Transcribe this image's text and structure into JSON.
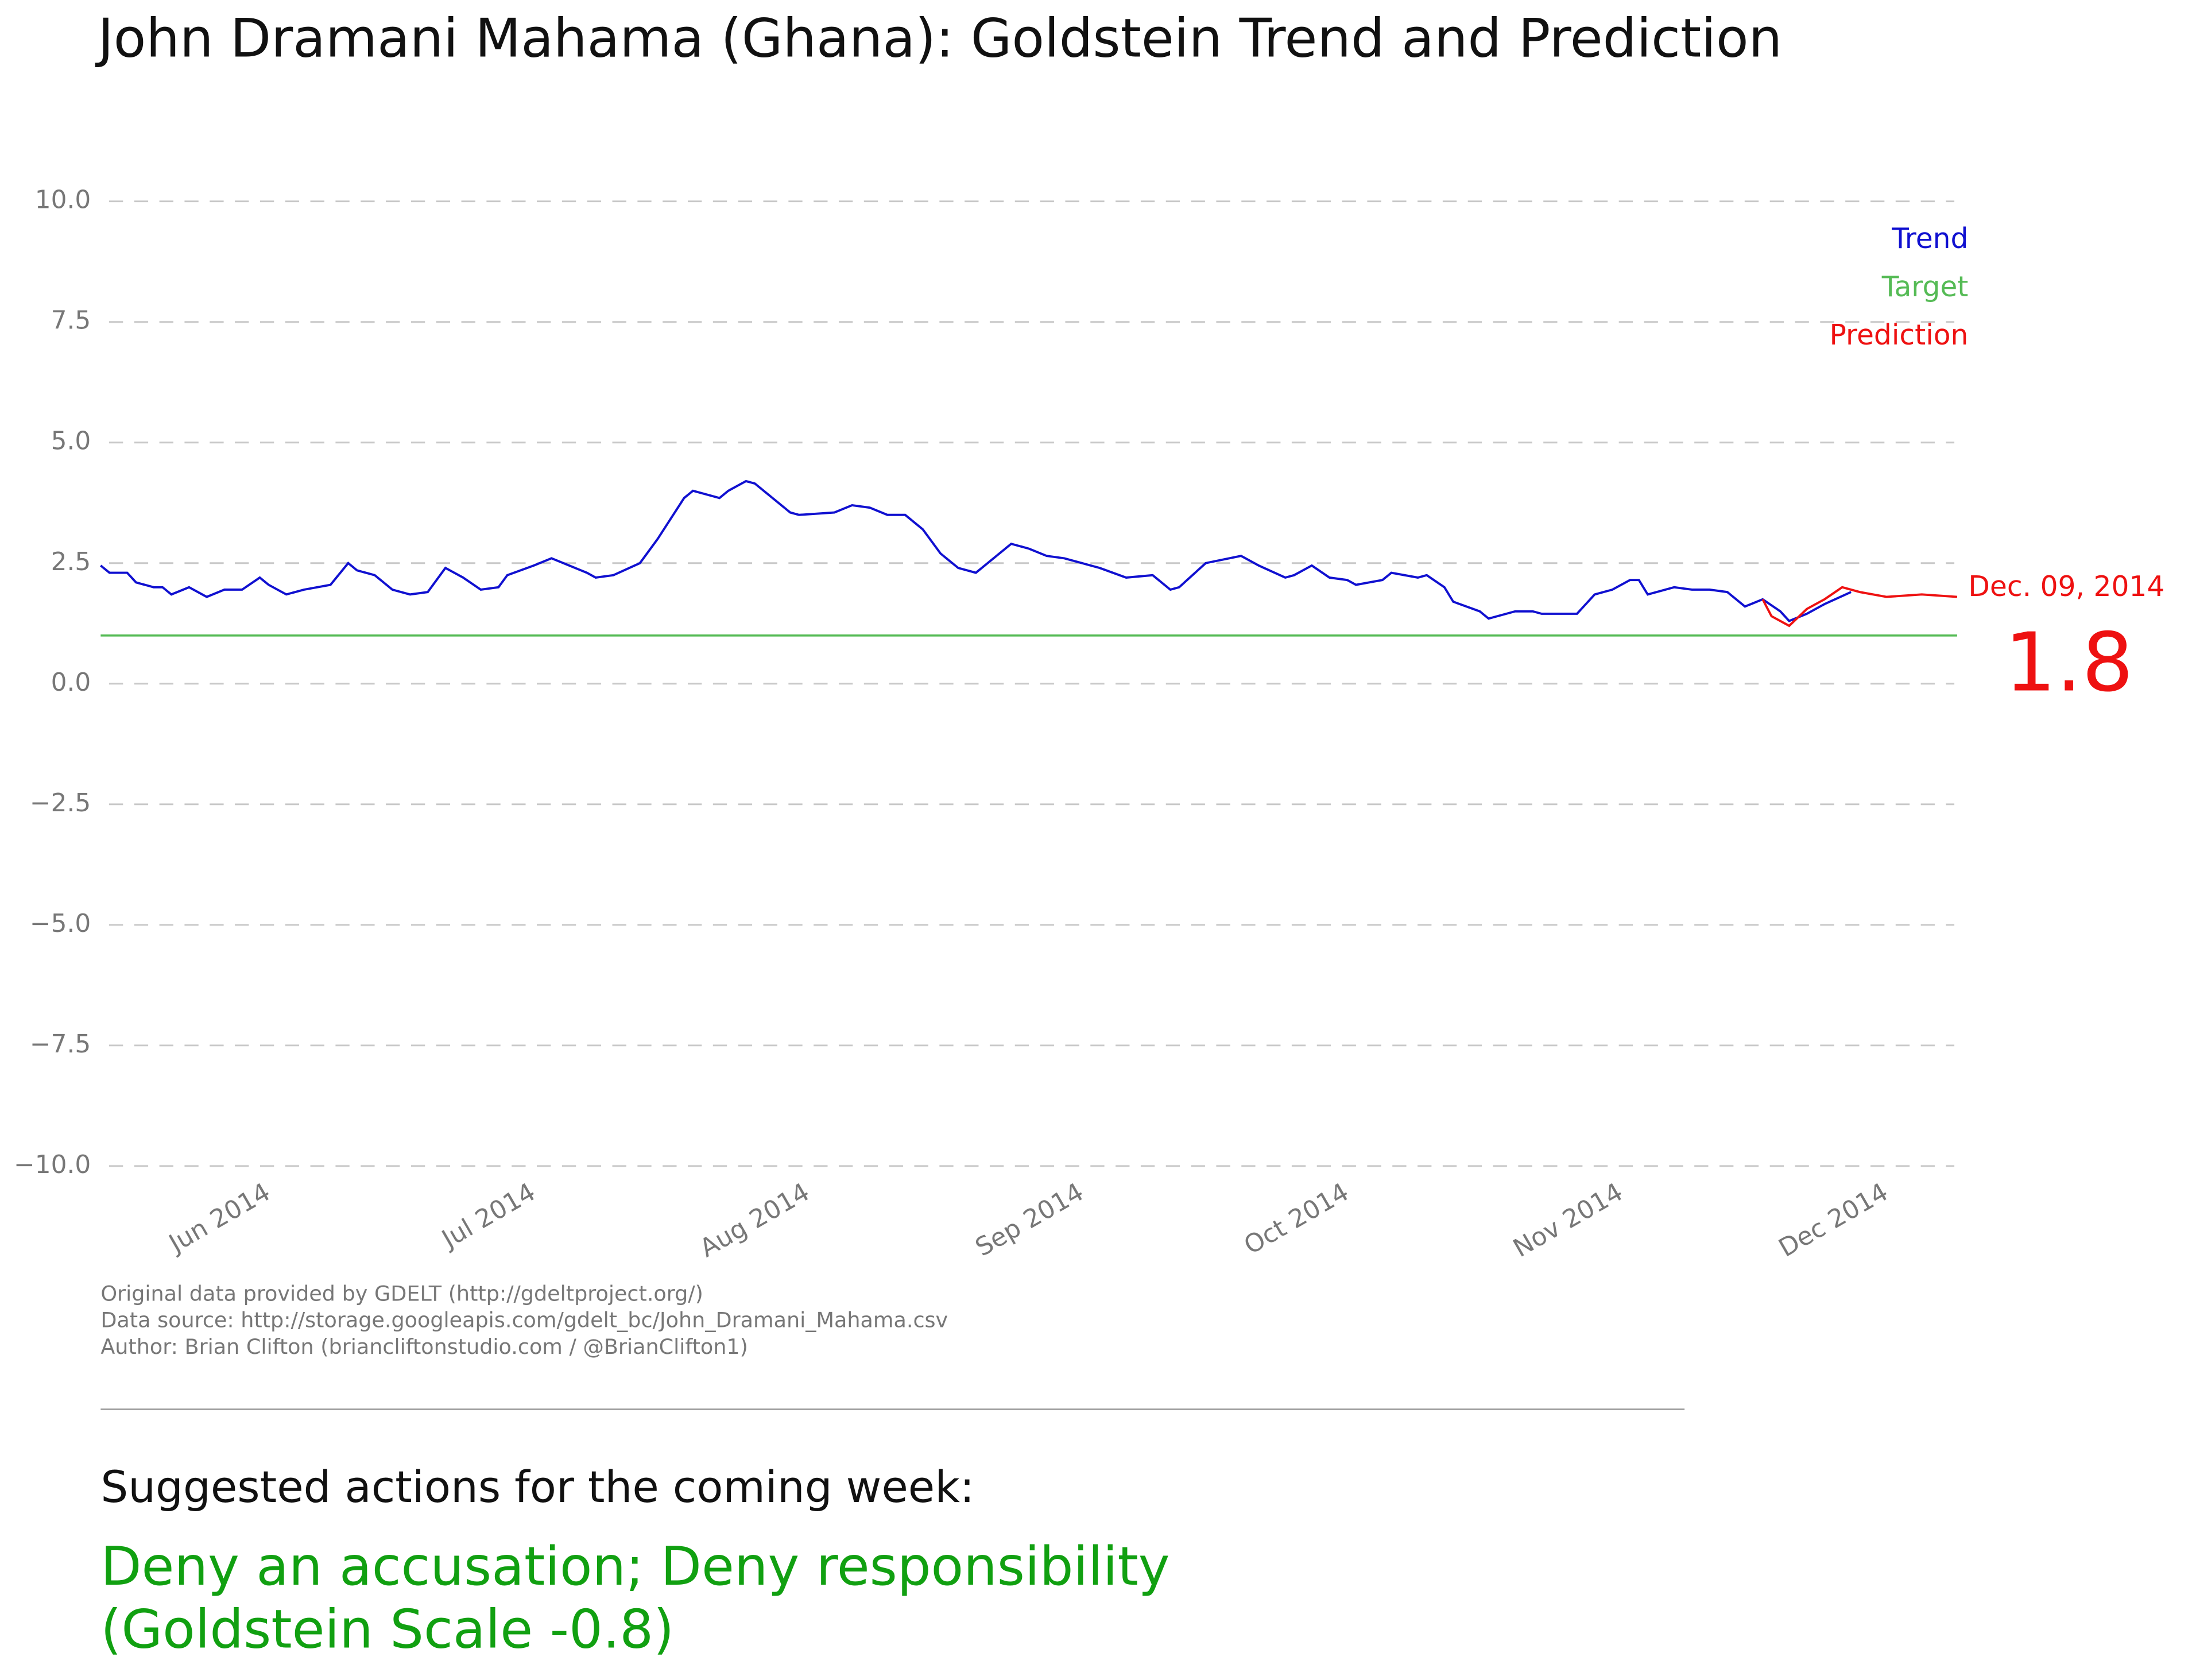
{
  "chart_data": {
    "type": "line",
    "title": "John Dramani Mahama (Ghana): Goldstein Trend and Prediction",
    "xlim": [
      "2014-05-13",
      "2014-12-09"
    ],
    "xticks": [
      {
        "value": "2014-06-01",
        "label": "Jun 2014"
      },
      {
        "value": "2014-07-01",
        "label": "Jul 2014"
      },
      {
        "value": "2014-08-01",
        "label": "Aug 2014"
      },
      {
        "value": "2014-09-01",
        "label": "Sep 2014"
      },
      {
        "value": "2014-10-01",
        "label": "Oct 2014"
      },
      {
        "value": "2014-11-01",
        "label": "Nov 2014"
      },
      {
        "value": "2014-12-01",
        "label": "Dec 2014"
      }
    ],
    "ylim": [
      -10,
      10
    ],
    "yticks": [
      {
        "value": 10,
        "label": "10.0"
      },
      {
        "value": 7.5,
        "label": "7.5"
      },
      {
        "value": 5,
        "label": "5.0"
      },
      {
        "value": 2.5,
        "label": "2.5"
      },
      {
        "value": 0,
        "label": "0.0"
      },
      {
        "value": -2.5,
        "label": "−2.5"
      },
      {
        "value": -5,
        "label": "−5.0"
      },
      {
        "value": -7.5,
        "label": "−7.5"
      },
      {
        "value": -10,
        "label": "−10.0"
      }
    ],
    "grid": true,
    "legend": "upper right",
    "series": [
      {
        "name": "Trend",
        "color": "#1010d0",
        "x": [
          "2014-05-13",
          "2014-05-14",
          "2014-05-16",
          "2014-05-17",
          "2014-05-19",
          "2014-05-20",
          "2014-05-21",
          "2014-05-23",
          "2014-05-25",
          "2014-05-27",
          "2014-05-29",
          "2014-05-31",
          "2014-06-01",
          "2014-06-03",
          "2014-06-05",
          "2014-06-08",
          "2014-06-10",
          "2014-06-11",
          "2014-06-13",
          "2014-06-15",
          "2014-06-17",
          "2014-06-19",
          "2014-06-21",
          "2014-06-23",
          "2014-06-25",
          "2014-06-27",
          "2014-06-28",
          "2014-07-01",
          "2014-07-03",
          "2014-07-05",
          "2014-07-07",
          "2014-07-08",
          "2014-07-10",
          "2014-07-13",
          "2014-07-15",
          "2014-07-18",
          "2014-07-19",
          "2014-07-22",
          "2014-07-23",
          "2014-07-25",
          "2014-07-26",
          "2014-07-30",
          "2014-07-31",
          "2014-08-04",
          "2014-08-06",
          "2014-08-08",
          "2014-08-10",
          "2014-08-12",
          "2014-08-14",
          "2014-08-16",
          "2014-08-18",
          "2014-08-20",
          "2014-08-21",
          "2014-08-23",
          "2014-08-24",
          "2014-08-26",
          "2014-08-28",
          "2014-08-30",
          "2014-09-01",
          "2014-09-03",
          "2014-09-06",
          "2014-09-09",
          "2014-09-11",
          "2014-09-12",
          "2014-09-15",
          "2014-09-19",
          "2014-09-21",
          "2014-09-24",
          "2014-09-25",
          "2014-09-27",
          "2014-09-29",
          "2014-10-01",
          "2014-10-02",
          "2014-10-05",
          "2014-10-06",
          "2014-10-09",
          "2014-10-10",
          "2014-10-12",
          "2014-10-13",
          "2014-10-16",
          "2014-10-17",
          "2014-10-20",
          "2014-10-22",
          "2014-10-23",
          "2014-10-27",
          "2014-10-29",
          "2014-10-31",
          "2014-11-02",
          "2014-11-03",
          "2014-11-04",
          "2014-11-07",
          "2014-11-09",
          "2014-11-11",
          "2014-11-13",
          "2014-11-15",
          "2014-11-17",
          "2014-11-19",
          "2014-11-20",
          "2014-11-22",
          "2014-11-24",
          "2014-11-27"
        ],
        "values": [
          2.45,
          2.3,
          2.3,
          2.1,
          2.0,
          2.0,
          1.85,
          2.0,
          1.8,
          1.95,
          1.95,
          2.2,
          2.05,
          1.85,
          1.95,
          2.05,
          2.5,
          2.35,
          2.25,
          1.95,
          1.85,
          1.9,
          2.4,
          2.2,
          1.95,
          2.0,
          2.25,
          2.45,
          2.6,
          2.45,
          2.3,
          2.2,
          2.25,
          2.5,
          3.0,
          3.85,
          4.0,
          3.85,
          4.0,
          4.2,
          4.15,
          3.55,
          3.5,
          3.55,
          3.7,
          3.65,
          3.5,
          3.5,
          3.2,
          2.7,
          2.4,
          2.3,
          2.45,
          2.75,
          2.9,
          2.8,
          2.65,
          2.6,
          2.5,
          2.4,
          2.2,
          2.25,
          1.95,
          2.0,
          2.5,
          2.65,
          2.45,
          2.2,
          2.25,
          2.45,
          2.2,
          2.15,
          2.05,
          2.15,
          2.3,
          2.2,
          2.25,
          2.0,
          1.7,
          1.5,
          1.35,
          1.5,
          1.5,
          1.45,
          1.45,
          1.85,
          1.95,
          2.15,
          2.15,
          1.85,
          2.0,
          1.95,
          1.95,
          1.9,
          1.6,
          1.75,
          1.5,
          1.3,
          1.45,
          1.65,
          1.9
        ]
      },
      {
        "name": "Target",
        "color": "#55bb55",
        "x": [
          "2014-05-13",
          "2014-12-09"
        ],
        "values": [
          1,
          1
        ]
      },
      {
        "name": "Prediction",
        "color": "#ee1111",
        "x": [
          "2014-11-17",
          "2014-11-18",
          "2014-11-20",
          "2014-11-22",
          "2014-11-24",
          "2014-11-26",
          "2014-11-28",
          "2014-12-01",
          "2014-12-05",
          "2014-12-09"
        ],
        "values": [
          1.75,
          1.4,
          1.2,
          1.55,
          1.75,
          2.0,
          1.9,
          1.8,
          1.85,
          1.8
        ],
        "value_labels": [
          null,
          null,
          null,
          null,
          null,
          null,
          null,
          null,
          null,
          "1.8"
        ]
      }
    ],
    "annotation": "Dec. 09, 2014",
    "footer": [
      "Original data provided by GDELT (http://gdeltproject.org/)",
      "Data source: http://storage.googleapis.com/gdelt_bc/John_Dramani_Mahama.csv",
      "Author: Brian Clifton (briancliftonstudio.com / @BrianClifton1)"
    ],
    "actions_heading": "Suggested actions for the coming week:",
    "actions": [
      "Deny an accusation; Deny responsibility",
      "(Goldstein Scale -0.8)"
    ]
  }
}
